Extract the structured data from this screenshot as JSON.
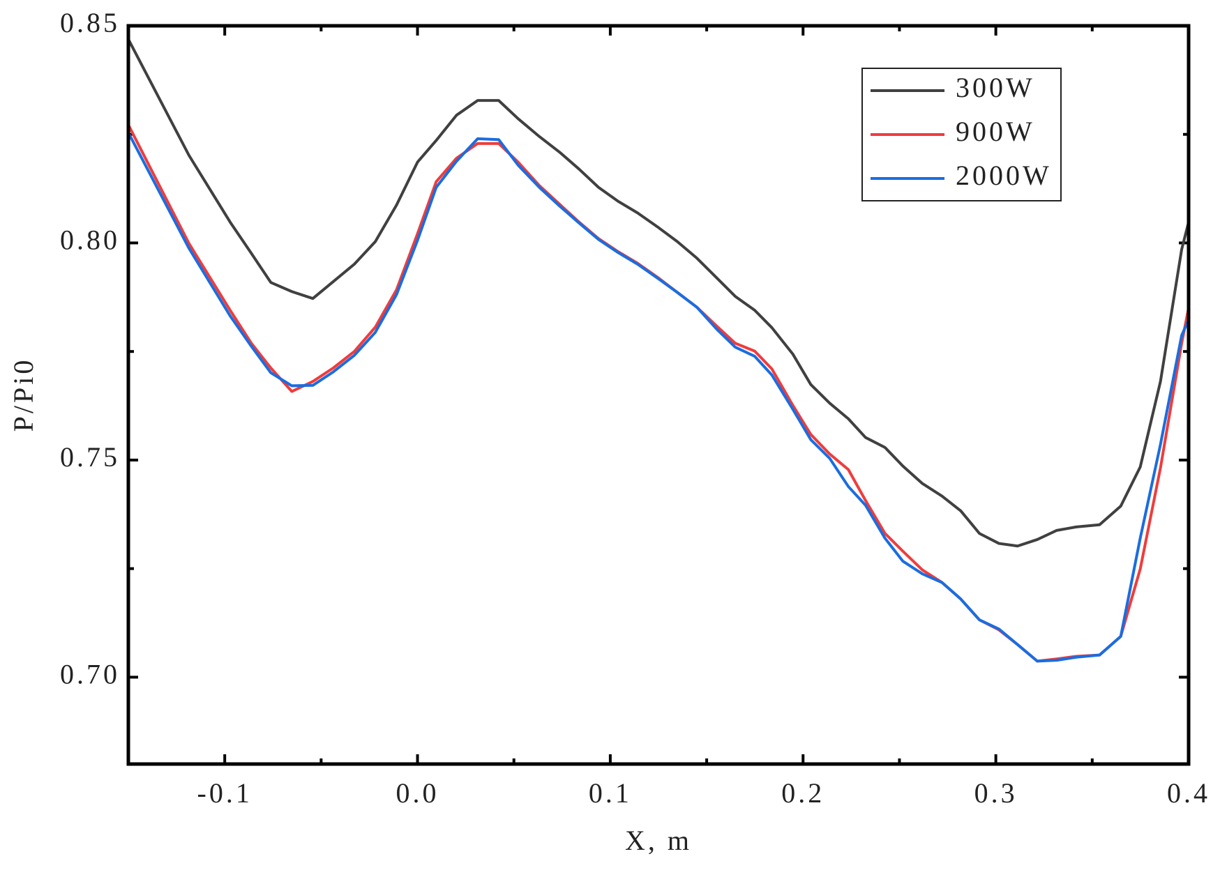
{
  "chart_data": {
    "type": "line",
    "xlabel": "X, m",
    "ylabel": "P/Pi0",
    "x": [
      -0.15,
      -0.1186,
      -0.0972,
      -0.0862,
      -0.0761,
      -0.0652,
      -0.0543,
      -0.0437,
      -0.0328,
      -0.0219,
      -0.0109,
      0.0,
      0.0097,
      0.0202,
      0.0312,
      0.0421,
      0.0522,
      0.0632,
      0.0737,
      0.0838,
      0.0939,
      0.104,
      0.1142,
      0.1251,
      0.1348,
      0.1449,
      0.1551,
      0.1648,
      0.1749,
      0.1838,
      0.1947,
      0.204,
      0.2138,
      0.2235,
      0.2324,
      0.2425,
      0.2518,
      0.2619,
      0.2721,
      0.2818,
      0.2915,
      0.3016,
      0.3113,
      0.3215,
      0.3316,
      0.3417,
      0.3538,
      0.3648,
      0.3749,
      0.3854,
      0.3964,
      0.4
    ],
    "series": [
      {
        "name": "300W",
        "color": "#404040",
        "values": [
          0.8469,
          0.8202,
          0.8048,
          0.7976,
          0.7909,
          0.7888,
          0.7872,
          0.7911,
          0.7951,
          0.8003,
          0.8087,
          0.8186,
          0.8236,
          0.8294,
          0.8328,
          0.8328,
          0.8286,
          0.8245,
          0.8209,
          0.817,
          0.8128,
          0.8096,
          0.8069,
          0.8035,
          0.8003,
          0.7965,
          0.792,
          0.7877,
          0.7845,
          0.7805,
          0.7744,
          0.7674,
          0.7631,
          0.7595,
          0.7552,
          0.7529,
          0.7486,
          0.7446,
          0.7417,
          0.7383,
          0.7331,
          0.7308,
          0.7302,
          0.7317,
          0.7338,
          0.7346,
          0.7351,
          0.7394,
          0.7484,
          0.7681,
          0.7985,
          0.8048
        ]
      },
      {
        "name": "900W",
        "color": "#f03c3c",
        "values": [
          0.8272,
          0.7999,
          0.7845,
          0.7769,
          0.7712,
          0.7658,
          0.7681,
          0.7712,
          0.775,
          0.7806,
          0.7892,
          0.8021,
          0.8141,
          0.8195,
          0.8229,
          0.8229,
          0.8186,
          0.8132,
          0.8089,
          0.8048,
          0.801,
          0.798,
          0.7953,
          0.7919,
          0.7886,
          0.7852,
          0.7809,
          0.7769,
          0.7751,
          0.771,
          0.7626,
          0.7559,
          0.7514,
          0.7478,
          0.7407,
          0.7331,
          0.729,
          0.7247,
          0.7218,
          0.718,
          0.7132,
          0.7109,
          0.7075,
          0.7037,
          0.7042,
          0.7048,
          0.7051,
          0.7094,
          0.7249,
          0.7482,
          0.7769,
          0.785
        ]
      },
      {
        "name": "2000W",
        "color": "#1a6de0",
        "values": [
          0.8254,
          0.7988,
          0.7832,
          0.7762,
          0.7701,
          0.7671,
          0.7672,
          0.7703,
          0.7741,
          0.7794,
          0.7881,
          0.8006,
          0.8128,
          0.8188,
          0.824,
          0.8238,
          0.8179,
          0.8128,
          0.8085,
          0.8046,
          0.8008,
          0.7978,
          0.7951,
          0.7917,
          0.7886,
          0.7852,
          0.7802,
          0.776,
          0.7739,
          0.7696,
          0.7617,
          0.7547,
          0.7504,
          0.7439,
          0.7396,
          0.732,
          0.7267,
          0.7238,
          0.7218,
          0.718,
          0.7132,
          0.7111,
          0.7075,
          0.7037,
          0.7039,
          0.7046,
          0.7051,
          0.7094,
          0.732,
          0.7536,
          0.7787,
          0.7823
        ]
      }
    ],
    "xlim": [
      -0.15,
      0.4
    ],
    "ylim": [
      0.68,
      0.85
    ],
    "xticks": [
      -0.1,
      {
        "value": 0,
        "label": "0.0"
      },
      0.1,
      0.2,
      0.3,
      0.4
    ],
    "yticks": [
      {
        "value": 0.7,
        "label": "0.70"
      },
      0.75,
      {
        "value": 0.8,
        "label": "0.80"
      },
      0.85
    ],
    "xminorticks": [
      -0.05,
      0.05,
      0.15,
      0.25,
      0.35
    ],
    "yminorticks": [
      0.725,
      0.775,
      0.825
    ],
    "legend": "upper-right",
    "grid": false
  }
}
